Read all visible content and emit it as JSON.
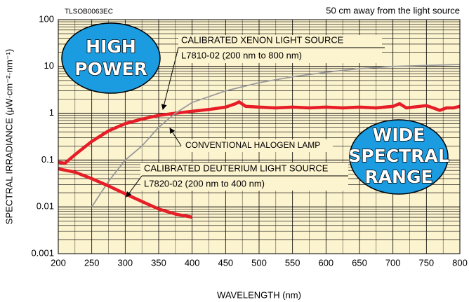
{
  "chart_data": {
    "type": "line",
    "code": "TLSOB0063EC",
    "subtitle": "50 cm away from the light source",
    "x_label": "WAVELENGTH (nm)",
    "y_label": "SPECTRAL IRRADIANCE (μW·cm⁻²·nm⁻¹)",
    "log": true,
    "grid": true,
    "xlim": [
      200,
      800
    ],
    "xticks": [
      200,
      250,
      300,
      350,
      400,
      450,
      500,
      550,
      600,
      650,
      700,
      750,
      800
    ],
    "ylim": [
      0.001,
      100
    ],
    "yticks": [
      100,
      10,
      1,
      0.1,
      0.01,
      0.001
    ],
    "series": [
      {
        "color": "#e61e28",
        "x": [
          200,
          210,
          225,
          250,
          275,
          300,
          325,
          350,
          375,
          400,
          425,
          450,
          465,
          470,
          480,
          500,
          525,
          550,
          575,
          600,
          625,
          650,
          675,
          700,
          710,
          720,
          740,
          750,
          760,
          770,
          780,
          790,
          800
        ],
        "values": [
          0.09,
          0.085,
          0.13,
          0.25,
          0.42,
          0.6,
          0.75,
          0.9,
          1.0,
          1.1,
          1.2,
          1.35,
          1.6,
          1.75,
          1.4,
          1.35,
          1.3,
          1.35,
          1.3,
          1.35,
          1.3,
          1.35,
          1.3,
          1.4,
          1.6,
          1.3,
          1.4,
          1.45,
          1.3,
          1.15,
          1.3,
          1.3,
          1.4
        ]
      },
      {
        "color": "#999999",
        "x": [
          250,
          275,
          300,
          325,
          350,
          375,
          400,
          450,
          500,
          550,
          600,
          650,
          700,
          750,
          800
        ],
        "values": [
          0.01,
          0.035,
          0.1,
          0.2,
          0.5,
          1,
          1.7,
          3,
          4.5,
          6,
          7.5,
          9,
          10,
          10.5,
          11
        ]
      },
      {
        "color": "#e61e28",
        "x": [
          200,
          225,
          250,
          275,
          300,
          325,
          350,
          375,
          400
        ],
        "values": [
          0.065,
          0.055,
          0.04,
          0.028,
          0.019,
          0.013,
          0.009,
          0.007,
          0.006
        ]
      }
    ],
    "annotations": [
      "CALIBRATED XENON LIGHT SOURCE",
      "L7810-02 (200 nm to 800 nm)",
      "CONVENTIONAL HALOGEN LAMP",
      "CALIBRATED DEUTERIUM LIGHT SOURCE",
      "L7820-02 (200 nm to 400 nm)"
    ],
    "badges": [
      [
        "HIGH",
        "POWER"
      ],
      [
        "WIDE",
        "SPECTRAL",
        "RANGE"
      ]
    ]
  }
}
